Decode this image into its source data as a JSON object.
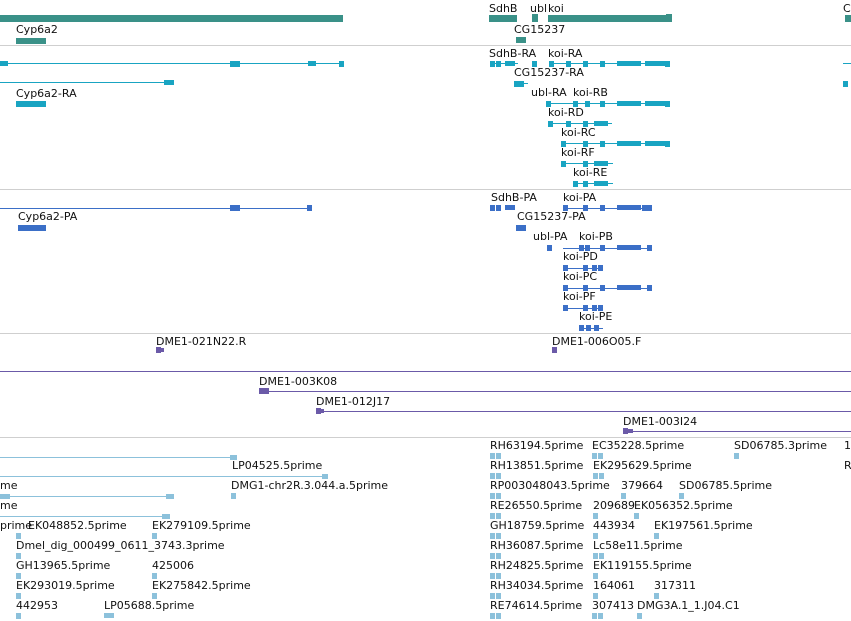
{
  "colors": {
    "gene": "#3a9188",
    "transcript_flybase": "#19a4c2",
    "transcript_refseq": "#3b6fc7",
    "clone": "#6b5aa8",
    "est": "#8cc1db",
    "divider": "#cfcfcf"
  },
  "genes": {
    "cyp6a2": "Cyp6a2",
    "sdhb": "SdhB",
    "ubl": "ubl",
    "koi": "koi",
    "cg15237": "CG15237",
    "edge": "C"
  },
  "transcripts_a": {
    "sdhb_ra": "SdhB-RA",
    "koi_ra": "koi-RA",
    "cg15237_ra": "CG15237-RA",
    "cyp6a2_ra": "Cyp6a2-RA",
    "ubl_ra": "ubl-RA",
    "koi_rb": "koi-RB",
    "koi_rd": "koi-RD",
    "koi_rc": "koi-RC",
    "koi_rf": "koi-RF",
    "koi_re": "koi-RE"
  },
  "transcripts_b": {
    "sdhb_pa": "SdhB-PA",
    "koi_pa": "koi-PA",
    "cyp6a2_pa": "Cyp6a2-PA",
    "cg15237_pa": "CG15237-PA",
    "ubl_pa": "ubl-PA",
    "koi_pb": "koi-PB",
    "koi_pd": "koi-PD",
    "koi_pc": "koi-PC",
    "koi_pf": "koi-PF",
    "koi_pe": "koi-PE"
  },
  "clones": {
    "c1": "DME1-021N22.R",
    "c2": "DME1-006O05.F",
    "c3": "DME1-003K08",
    "c4": "DME1-012J17",
    "c5": "DME1-003I24"
  },
  "ests": {
    "e01": "RH63194.5prime",
    "e02": "EC35228.5prime",
    "e03": "SD06785.3prime",
    "e04": "1",
    "e05": "LP04525.5prime",
    "e06": "RH13851.5prime",
    "e07": "EK295629.5prime",
    "e08": "R",
    "e09": "me",
    "e10": "DMG1-chr2R.3.044.a.5prime",
    "e11": "RP003048043.5prime",
    "e12": "379664",
    "e13": "SD06785.5prime",
    "e14": "me",
    "e15": "RE26550.5prime",
    "e16": "209689",
    "e17": "EK056352.5prime",
    "e18": "prime",
    "e19": "EK048852.5prime",
    "e20": "EK279109.5prime",
    "e21": "GH18759.5prime",
    "e22": "443934",
    "e23": "EK197561.5prime",
    "e24": "Dmel_dig_000499_0611_3743.3prime",
    "e25": "RH36087.5prime",
    "e26": "Lс58e11.5prime",
    "e27": "GH13965.5prime",
    "e28": "425006",
    "e29": "RH24825.5prime",
    "e30": "EK119155.5prime",
    "e31": "EK293019.5prime",
    "e32": "EK275842.5prime",
    "e33": "RH34034.5prime",
    "e34": "164061",
    "e35": "317311",
    "e36": "442953",
    "e37": "LP05688.5prime",
    "e38": "RE74614.5prime",
    "e39": "307413",
    "e40": "DMG3A.1_1.J04.C1"
  }
}
